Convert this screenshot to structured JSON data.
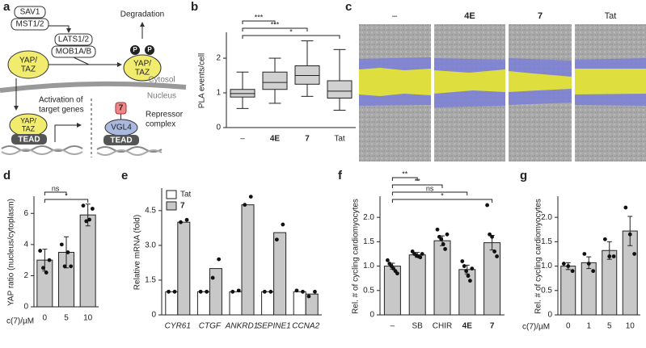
{
  "panel_labels": [
    "a",
    "b",
    "c",
    "d",
    "e",
    "f",
    "g"
  ],
  "diagram": {
    "nodes": [
      "SAV1",
      "MST1/2",
      "LATS1/2",
      "MOB1A/B",
      "Degradation",
      "P",
      "P",
      "YAP/",
      "TAZ",
      "YAP/",
      "TAZ",
      "Cytosol",
      "Nucleus",
      "Activation of",
      "target genes",
      "YAP/",
      "TAZ",
      "TEAD",
      "7",
      "VGL4",
      "TEAD",
      "Repressor",
      "complex"
    ]
  },
  "images": {
    "labels": [
      "–",
      "4E",
      "7",
      "Tat"
    ]
  },
  "chart_data": [
    {
      "type": "box",
      "ylabel": "PLA events/cell",
      "categories": [
        "–",
        "4E",
        "7",
        "Tat"
      ],
      "whisker_low": [
        0.55,
        0.7,
        0.9,
        0.5
      ],
      "q1": [
        0.88,
        1.1,
        1.25,
        0.85
      ],
      "median": [
        0.98,
        1.3,
        1.5,
        1.05
      ],
      "q3": [
        1.1,
        1.6,
        1.78,
        1.35
      ],
      "whisker_high": [
        1.6,
        2.0,
        2.5,
        2.25
      ],
      "color": "#d0d0d0",
      "ylim": [
        0,
        2.7
      ],
      "yticks": [
        0,
        1,
        2
      ],
      "comparisons": [
        {
          "pair": [
            "–",
            "4E"
          ],
          "label": "***"
        },
        {
          "pair": [
            "–",
            "7"
          ],
          "label": "***"
        },
        {
          "pair": [
            "–",
            "Tat"
          ],
          "label": "*"
        }
      ]
    },
    {
      "type": "bar",
      "ylabel": "YAP ratio (nucleus/cytoplasm)",
      "xlabel": "c(7)/µM",
      "categories": [
        "0",
        "5",
        "10"
      ],
      "values": [
        3.0,
        3.5,
        5.9
      ],
      "errors": [
        0.7,
        1.0,
        0.7
      ],
      "points": [
        [
          3.6,
          2.5,
          2.2,
          3.0
        ],
        [
          4.0,
          2.6,
          3.5,
          2.6
        ],
        [
          6.5,
          5.5,
          5.6,
          6.3
        ]
      ],
      "color": "#c8c8c8",
      "ylim": [
        0,
        7
      ],
      "yticks": [
        0,
        2,
        4,
        6
      ],
      "comparisons": [
        {
          "pair": [
            "0",
            "5"
          ],
          "label": "ns"
        },
        {
          "pair": [
            "0",
            "10"
          ],
          "label": "*"
        }
      ]
    },
    {
      "type": "grouped_bar",
      "ylabel": "Relative mRNA (fold)",
      "categories": [
        "CYR61",
        "CTGF",
        "ANKRD1",
        "SEPINE1",
        "CCNA2"
      ],
      "series": [
        {
          "name": "Tat",
          "color": "#ffffff",
          "values": [
            1.0,
            1.0,
            1.0,
            1.0,
            1.0
          ],
          "points": [
            [
              1.0,
              1.0
            ],
            [
              1.0,
              1.0
            ],
            [
              1.0,
              1.05
            ],
            [
              1.0,
              1.0
            ],
            [
              1.05,
              1.0
            ]
          ]
        },
        {
          "name": "7",
          "color": "#c8c8c8",
          "values": [
            4.0,
            2.0,
            4.75,
            3.55,
            0.9
          ],
          "points": [
            [
              4.0,
              4.1
            ],
            [
              1.6,
              2.4
            ],
            [
              4.75,
              5.1
            ],
            [
              3.25,
              3.9
            ],
            [
              0.8,
              1.0
            ]
          ]
        }
      ],
      "ylim": [
        0,
        5.4
      ],
      "yticks": [
        0,
        1.5,
        {
          "value": 3,
          "label": "3.0"
        },
        4.5
      ],
      "legend": "top-left"
    },
    {
      "type": "bar",
      "ylabel": "Rel. # of cycling cardiomyocytes",
      "categories": [
        "–",
        "SB",
        "CHIR",
        "4E",
        "7"
      ],
      "values": [
        1.0,
        1.23,
        1.52,
        0.93,
        1.48
      ],
      "errors": [
        0.06,
        0.05,
        0.1,
        0.09,
        0.15
      ],
      "points": [
        [
          1.12,
          1.05,
          1.0,
          0.95,
          0.9,
          0.85
        ],
        [
          1.3,
          1.25,
          1.22,
          1.2,
          1.18,
          1.25
        ],
        [
          1.75,
          1.6,
          1.55,
          1.45,
          1.35,
          1.65
        ],
        [
          1.1,
          1.0,
          0.9,
          0.8,
          0.7,
          0.95
        ],
        [
          2.25,
          1.65,
          1.6,
          1.3,
          1.2
        ]
      ],
      "color": "#c8c8c8",
      "ylim": [
        0,
        2.4
      ],
      "yticks": [
        0,
        0.5,
        {
          "value": 1,
          "label": "1.0"
        },
        1.5,
        {
          "value": 2,
          "label": "2.0"
        }
      ],
      "comparisons": [
        {
          "pair": [
            "–",
            "SB"
          ],
          "label": "**"
        },
        {
          "pair": [
            "–",
            "CHIR"
          ],
          "label": "**"
        },
        {
          "pair": [
            "–",
            "4E"
          ],
          "label": "ns"
        },
        {
          "pair": [
            "–",
            "7"
          ],
          "label": "*"
        }
      ]
    },
    {
      "type": "bar",
      "ylabel": "Rel. # of cycling cardiomyocytes",
      "xlabel": "c(7)/µM",
      "categories": [
        "0",
        "1",
        "5",
        "10"
      ],
      "values": [
        1.0,
        1.07,
        1.32,
        1.72
      ],
      "errors": [
        0.07,
        0.12,
        0.18,
        0.3
      ],
      "points": [
        [
          1.05,
          1.0,
          0.9
        ],
        [
          1.25,
          1.05,
          0.9
        ],
        [
          1.55,
          1.2,
          1.2
        ],
        [
          2.2,
          1.65,
          1.25
        ]
      ],
      "color": "#c8c8c8",
      "ylim": [
        0,
        2.4
      ],
      "yticks": [
        0,
        0.5,
        {
          "value": 1,
          "label": "1.0"
        },
        1.5,
        {
          "value": 2,
          "label": "2.0"
        }
      ]
    }
  ]
}
